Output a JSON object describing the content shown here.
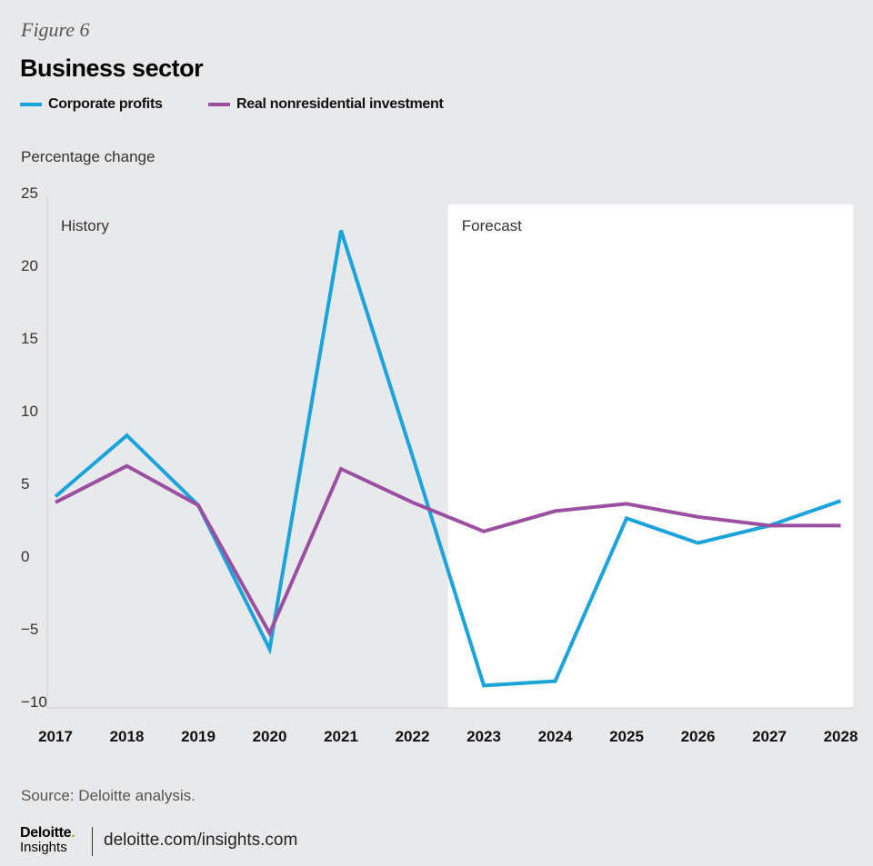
{
  "figure_label": "Figure 6",
  "footer": {
    "source": "Source: Deloitte analysis.",
    "logo_top": "Deloitte",
    "logo_dot": ".",
    "logo_bottom": "Insights",
    "url": "deloitte.com/insights.com"
  },
  "chart_data": {
    "type": "line",
    "title": "Business sector",
    "xlabel": "",
    "ylabel": "Percentage change",
    "x": [
      "2017",
      "2018",
      "2019",
      "2020",
      "2021",
      "2022",
      "2023",
      "2024",
      "2025",
      "2026",
      "2027",
      "2028"
    ],
    "ylim": [
      -10,
      25
    ],
    "yticks": [
      25,
      20,
      15,
      10,
      5,
      0,
      -5,
      -10
    ],
    "ytick_labels": [
      "25",
      "20",
      "15",
      "10",
      "5",
      "0",
      "−5",
      "−10"
    ],
    "grid": false,
    "legend_position": "top-left",
    "regions": [
      {
        "label": "History",
        "from": "2017",
        "to": "2022",
        "shaded": false
      },
      {
        "label": "Forecast",
        "from": "2023",
        "to": "2028",
        "shaded": true
      }
    ],
    "series": [
      {
        "name": "Corporate profits",
        "color": "#1ba4dc",
        "values": [
          4.1,
          8.3,
          3.5,
          -6.4,
          22.4,
          6.9,
          -8.9,
          -8.6,
          2.6,
          0.9,
          2.1,
          3.8
        ]
      },
      {
        "name": "Real nonresidential investment",
        "color": "#9b4fa1",
        "values": [
          3.7,
          6.2,
          3.5,
          -5.3,
          6.0,
          3.7,
          1.7,
          3.1,
          3.6,
          2.7,
          2.1,
          2.1
        ]
      }
    ]
  }
}
